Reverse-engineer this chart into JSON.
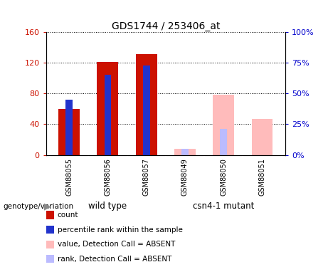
{
  "title": "GDS1744 / 253406_at",
  "samples": [
    "GSM88055",
    "GSM88056",
    "GSM88057",
    "GSM88049",
    "GSM88050",
    "GSM88051"
  ],
  "absent": [
    false,
    false,
    false,
    true,
    true,
    true
  ],
  "count_values": [
    60,
    121,
    131,
    0,
    0,
    0
  ],
  "rank_values": [
    45,
    65,
    73,
    0,
    0,
    0
  ],
  "absent_value": [
    0,
    0,
    0,
    8,
    78,
    47
  ],
  "absent_rank": [
    0,
    0,
    0,
    5,
    21,
    0
  ],
  "ylim_left": [
    0,
    160
  ],
  "ylim_right": [
    0,
    100
  ],
  "yticks_left": [
    0,
    40,
    80,
    120,
    160
  ],
  "ytick_labels_left": [
    "0",
    "40",
    "80",
    "120",
    "160"
  ],
  "ytick_labels_right": [
    "0%",
    "25%",
    "50%",
    "75%",
    "100%"
  ],
  "bar_color_count": "#cc1100",
  "bar_color_rank": "#2233cc",
  "bar_color_absent_value": "#ffbbbb",
  "bar_color_absent_rank": "#bbbbff",
  "bar_width": 0.55,
  "rank_bar_width": 0.18,
  "genotype_label": "genotype/variation",
  "legend_items": [
    {
      "label": "count",
      "color": "#cc1100"
    },
    {
      "label": "percentile rank within the sample",
      "color": "#2233cc"
    },
    {
      "label": "value, Detection Call = ABSENT",
      "color": "#ffbbbb"
    },
    {
      "label": "rank, Detection Call = ABSENT",
      "color": "#bbbbff"
    }
  ],
  "group_bg_color": "#77ee77",
  "sample_bg_color": "#cccccc",
  "plot_bg_color": "#ffffff",
  "title_fontsize": 10,
  "axis_label_color_left": "#cc1100",
  "axis_label_color_right": "#0000cc",
  "right_ytick_labels": [
    "0",
    "25",
    "50",
    "75",
    "100%"
  ]
}
